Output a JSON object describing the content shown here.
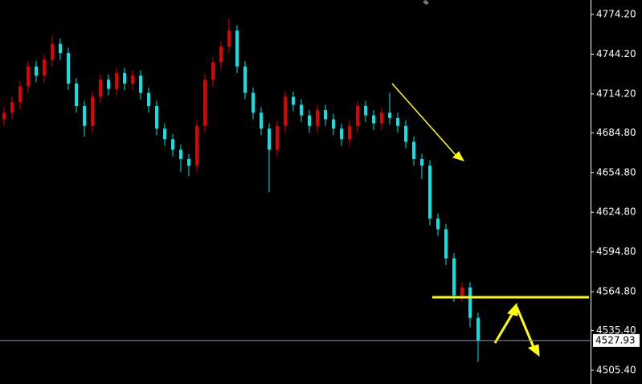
{
  "chart_data": {
    "type": "candlestick",
    "up_color": "#e00000",
    "down_color": "#00e5e5",
    "ylim": [
      4495.08,
      4785.12
    ],
    "yticks": [
      {
        "value": 4774.2,
        "label": "4774.20"
      },
      {
        "value": 4744.2,
        "label": "4744.20"
      },
      {
        "value": 4714.2,
        "label": "4714.20"
      },
      {
        "value": 4684.8,
        "label": "4684.80"
      },
      {
        "value": 4654.8,
        "label": "4654.80"
      },
      {
        "value": 4624.8,
        "label": "4624.80"
      },
      {
        "value": 4594.8,
        "label": "4594.80"
      },
      {
        "value": 4564.8,
        "label": "4564.80"
      },
      {
        "value": 4535.4,
        "label": "4535.40"
      },
      {
        "value": 4505.4,
        "label": "4505.40"
      }
    ],
    "last_price": 4527.93,
    "open": [
      4695,
      4700,
      4708,
      4720,
      4735,
      4728,
      4740,
      4752,
      4745,
      4722,
      4705,
      4690,
      4712,
      4725,
      4718,
      4730,
      4722,
      4728,
      4715,
      4705,
      4688,
      4680,
      4672,
      4665,
      4660,
      4690,
      4725,
      4738,
      4750,
      4762,
      4735,
      4715,
      4700,
      4688,
      4672,
      4690,
      4712,
      4706,
      4698,
      4690,
      4702,
      4695,
      4688,
      4680,
      4690,
      4705,
      4698,
      4692,
      4700,
      4696,
      4690,
      4678,
      4665,
      4660,
      4620,
      4612,
      4590,
      4562,
      4568,
      4545
    ],
    "high": [
      4704,
      4712,
      4724,
      4739,
      4739,
      4744,
      4758,
      4756,
      4749,
      4726,
      4709,
      4716,
      4729,
      4729,
      4734,
      4734,
      4732,
      4732,
      4719,
      4709,
      4692,
      4684,
      4676,
      4669,
      4694,
      4729,
      4742,
      4754,
      4771,
      4766,
      4739,
      4719,
      4704,
      4692,
      4694,
      4716,
      4716,
      4710,
      4702,
      4706,
      4706,
      4699,
      4692,
      4694,
      4709,
      4709,
      4702,
      4704,
      4715,
      4700,
      4694,
      4682,
      4669,
      4664,
      4624,
      4616,
      4594,
      4572,
      4572,
      4549
    ],
    "low": [
      4690,
      4695,
      4703,
      4715,
      4723,
      4723,
      4735,
      4740,
      4717,
      4700,
      4682,
      4685,
      4707,
      4713,
      4713,
      4717,
      4717,
      4710,
      4700,
      4683,
      4675,
      4667,
      4655,
      4652,
      4655,
      4685,
      4720,
      4733,
      4745,
      4730,
      4710,
      4695,
      4683,
      4640,
      4667,
      4685,
      4701,
      4693,
      4685,
      4685,
      4690,
      4683,
      4675,
      4675,
      4685,
      4693,
      4687,
      4687,
      4691,
      4685,
      4673,
      4660,
      4650,
      4615,
      4607,
      4585,
      4557,
      4557,
      4538,
      4512
    ],
    "close": [
      4700,
      4708,
      4720,
      4735,
      4728,
      4740,
      4752,
      4745,
      4722,
      4705,
      4690,
      4712,
      4725,
      4718,
      4730,
      4722,
      4728,
      4715,
      4705,
      4688,
      4680,
      4672,
      4665,
      4660,
      4690,
      4725,
      4738,
      4750,
      4762,
      4735,
      4715,
      4700,
      4688,
      4672,
      4690,
      4712,
      4706,
      4698,
      4690,
      4702,
      4695,
      4688,
      4680,
      4690,
      4705,
      4698,
      4692,
      4700,
      4696,
      4690,
      4678,
      4665,
      4660,
      4620,
      4612,
      4590,
      4562,
      4568,
      4545,
      4528
    ]
  }
}
